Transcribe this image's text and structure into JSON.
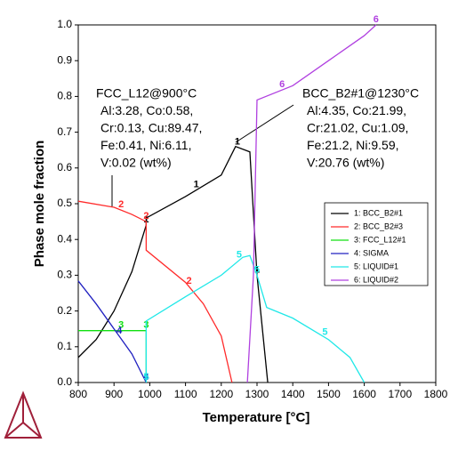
{
  "chart_data": {
    "type": "line",
    "x_label": "Temperature [°C]",
    "y_label": "Phase mole fraction",
    "xlim": [
      800,
      1800
    ],
    "xticks": [
      800,
      900,
      1000,
      1100,
      1200,
      1300,
      1400,
      1500,
      1600,
      1700,
      1800
    ],
    "ylim": [
      0,
      1
    ],
    "yticks": [
      {
        "value": 0,
        "label": "0.0"
      },
      {
        "value": 0.1,
        "label": "0.1"
      },
      {
        "value": 0.2,
        "label": "0.2"
      },
      {
        "value": 0.3,
        "label": "0.3"
      },
      {
        "value": 0.4,
        "label": "0.4"
      },
      {
        "value": 0.5,
        "label": "0.5"
      },
      {
        "value": 0.6,
        "label": "0.6"
      },
      {
        "value": 0.7,
        "label": "0.7"
      },
      {
        "value": 0.8,
        "label": "0.8"
      },
      {
        "value": 0.9,
        "label": "0.9"
      },
      {
        "value": 1,
        "label": "1.0"
      }
    ],
    "grid": false,
    "legend": "right",
    "series": [
      {
        "name": "1: BCC_B2#1",
        "tag": "1",
        "color": "#000000",
        "x": [
          800,
          850,
          900,
          950,
          990,
          990,
          1100,
          1200,
          1240,
          1280,
          1300,
          1330
        ],
        "values": [
          0.07,
          0.12,
          0.2,
          0.31,
          0.44,
          0.46,
          0.52,
          0.58,
          0.66,
          0.645,
          0.3,
          0
        ],
        "tag_x": [
          1130,
          1245,
          1300,
          990
        ]
      },
      {
        "name": "2: BCC_B2#3",
        "tag": "2",
        "color": "#ff2a2a",
        "x": [
          800,
          900,
          950,
          990,
          990,
          1100,
          1150,
          1200,
          1230
        ],
        "values": [
          0.507,
          0.49,
          0.47,
          0.45,
          0.37,
          0.28,
          0.22,
          0.13,
          0
        ],
        "tag_x": [
          920,
          1110,
          990
        ]
      },
      {
        "name": "3: FCC_L12#1",
        "tag": "3",
        "color": "#10e010",
        "x": [
          800,
          990,
          990
        ],
        "values": [
          0.145,
          0.145,
          0
        ],
        "tag_x": [
          920,
          990
        ]
      },
      {
        "name": "4: SIGMA",
        "tag": "4",
        "color": "#2020c0",
        "x": [
          800,
          850,
          900,
          950,
          990
        ],
        "values": [
          0.284,
          0.22,
          0.15,
          0.08,
          0
        ],
        "tag_x": [
          915,
          990
        ]
      },
      {
        "name": "5: LIQUID#1",
        "tag": "5",
        "color": "#20e8e8",
        "x": [
          990,
          990,
          1100,
          1200,
          1260,
          1280,
          1300,
          1327,
          1400,
          1500,
          1560,
          1600
        ],
        "values": [
          0,
          0.172,
          0.24,
          0.3,
          0.35,
          0.355,
          0.3,
          0.21,
          0.18,
          0.12,
          0.07,
          0
        ],
        "tag_x": [
          1250,
          1300,
          1490,
          990
        ]
      },
      {
        "name": "6: LIQUID#2",
        "tag": "6",
        "color": "#b040e0",
        "x": [
          1273,
          1290,
          1300,
          1400,
          1500,
          1600,
          1633
        ],
        "values": [
          0,
          0.3,
          0.79,
          0.83,
          0.9,
          0.97,
          1
        ],
        "tag_x": [
          1370,
          1633
        ]
      }
    ],
    "annotations": [
      {
        "lines": [
          "FCC_L12@900°C",
          "Al:3.28, Co:0.58,",
          "Cr:0.13, Cu:89.47,",
          "Fe:0.41, Ni:6.11,",
          "V:0.02 (wt%)"
        ]
      },
      {
        "lines": [
          "BCC_B2#1@1230°C",
          "Al:4.35, Co:21.99,",
          "Cr:21.02, Cu:1.09,",
          "Fe:21.2, Ni:9.59,",
          "V:20.76 (wt%)"
        ]
      }
    ]
  }
}
